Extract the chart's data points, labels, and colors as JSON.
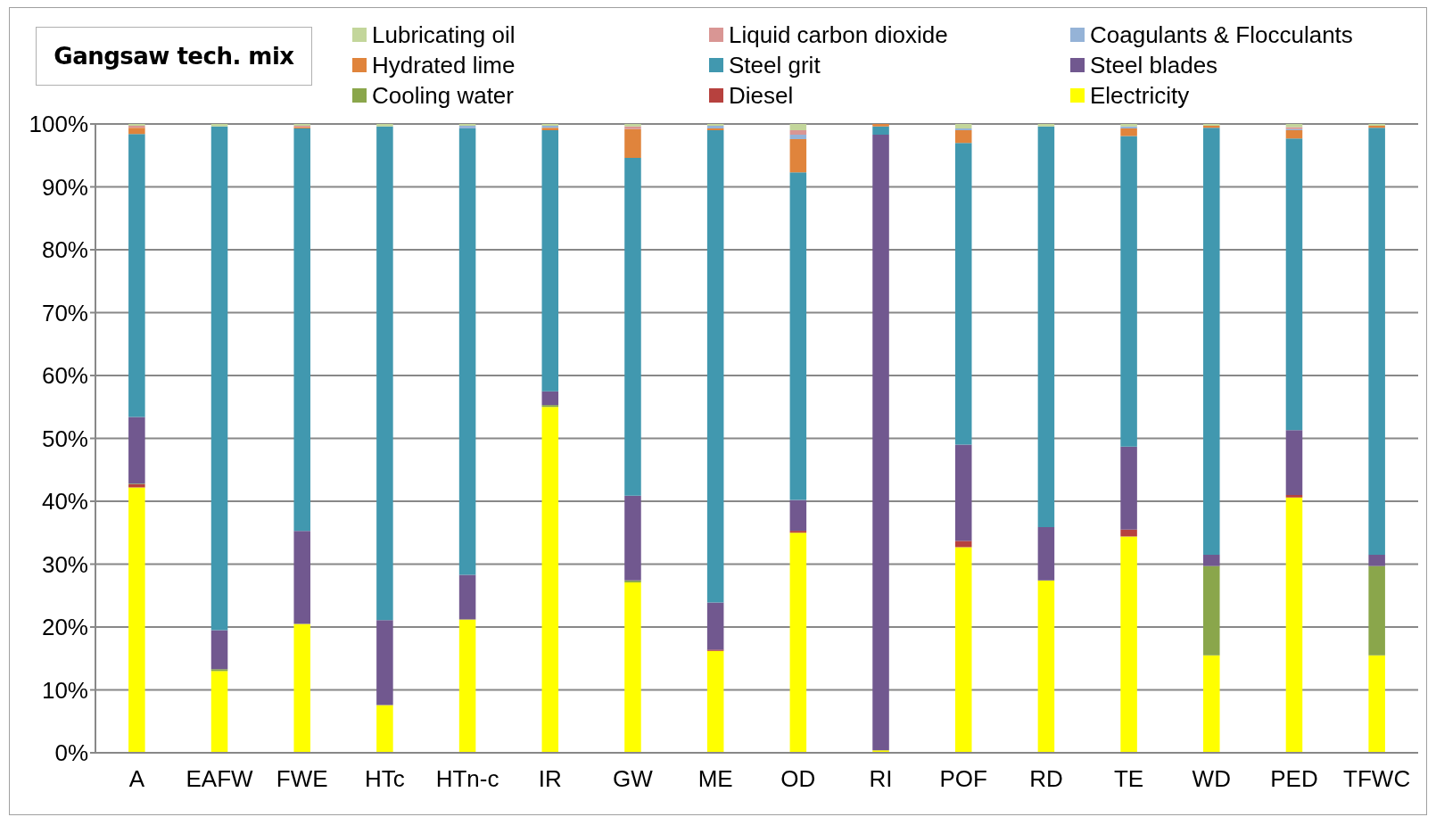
{
  "chart_data": {
    "type": "bar",
    "stacked": true,
    "title": "Gangsaw tech. mix",
    "categories": [
      "A",
      "EAFW",
      "FWE",
      "HTc",
      "HTn-c",
      "IR",
      "GW",
      "ME",
      "OD",
      "RI",
      "POF",
      "RD",
      "TE",
      "WD",
      "PED",
      "TFWC"
    ],
    "series": [
      {
        "name": "Electricity",
        "color": "#ffff00",
        "values": [
          42.2,
          13.0,
          20.5,
          7.6,
          21.2,
          55.0,
          27.1,
          16.2,
          35.0,
          0.4,
          32.7,
          27.4,
          34.4,
          15.5,
          40.6,
          15.5
        ]
      },
      {
        "name": "Diesel",
        "color": "#b7413e",
        "values": [
          0.5,
          0,
          0,
          0,
          0,
          0,
          0,
          0.2,
          0.3,
          0,
          1.0,
          0,
          1.1,
          0,
          0.4,
          0
        ]
      },
      {
        "name": "Cooling water",
        "color": "#8aa64b",
        "values": [
          0.1,
          0.3,
          0,
          0,
          0,
          0.3,
          0.3,
          0,
          0,
          0,
          0,
          0,
          0,
          14.2,
          0,
          14.2
        ]
      },
      {
        "name": "Steel blades",
        "color": "#71588f",
        "values": [
          10.6,
          6.2,
          14.8,
          13.5,
          7.1,
          2.2,
          13.5,
          7.5,
          4.9,
          97.9,
          15.3,
          8.5,
          13.2,
          1.8,
          10.3,
          1.8
        ]
      },
      {
        "name": "Steel grit",
        "color": "#4198af",
        "values": [
          45.0,
          80.1,
          64.0,
          78.5,
          71.0,
          41.5,
          53.7,
          75.1,
          52.1,
          1.3,
          48.0,
          63.7,
          49.4,
          67.9,
          46.4,
          67.9
        ]
      },
      {
        "name": "Hydrated lime",
        "color": "#e0843c",
        "values": [
          1.0,
          0,
          0.2,
          0,
          0,
          0.4,
          4.6,
          0.3,
          5.3,
          0.4,
          2.0,
          0,
          1.2,
          0.3,
          1.3,
          0.3
        ]
      },
      {
        "name": "Coagulants & Flocculants",
        "color": "#95b3d7",
        "values": [
          null,
          0,
          0,
          0,
          0.4,
          0.3,
          0,
          0.4,
          0.7,
          0,
          0.3,
          0,
          0.3,
          0,
          0.2,
          0
        ]
      },
      {
        "name": "Liquid carbon dioxide",
        "color": "#d99694",
        "values": [
          0.3,
          0,
          0.2,
          0,
          0,
          0,
          0.4,
          0,
          0.7,
          0,
          0,
          0,
          0,
          0,
          0.3,
          0
        ]
      },
      {
        "name": "Lubricating oil",
        "color": "#c3d69b",
        "values": [
          0.3,
          0.4,
          0.3,
          0.4,
          0.3,
          0.3,
          0.4,
          0.3,
          1.0,
          0,
          0.7,
          0.4,
          0.4,
          0.3,
          0.5,
          0.3
        ]
      }
    ],
    "ylim": [
      0,
      100
    ],
    "yticks": [
      {
        "value": 0,
        "label": "0%"
      },
      {
        "value": 10,
        "label": "10%"
      },
      {
        "value": 20,
        "label": "20%"
      },
      {
        "value": 30,
        "label": "30%"
      },
      {
        "value": 40,
        "label": "40%"
      },
      {
        "value": 50,
        "label": "50%"
      },
      {
        "value": 60,
        "label": "60%"
      },
      {
        "value": 70,
        "label": "70%"
      },
      {
        "value": 80,
        "label": "80%"
      },
      {
        "value": 90,
        "label": "90%"
      },
      {
        "value": 100,
        "label": "100%"
      }
    ],
    "grid": "y",
    "legend": "top right"
  }
}
